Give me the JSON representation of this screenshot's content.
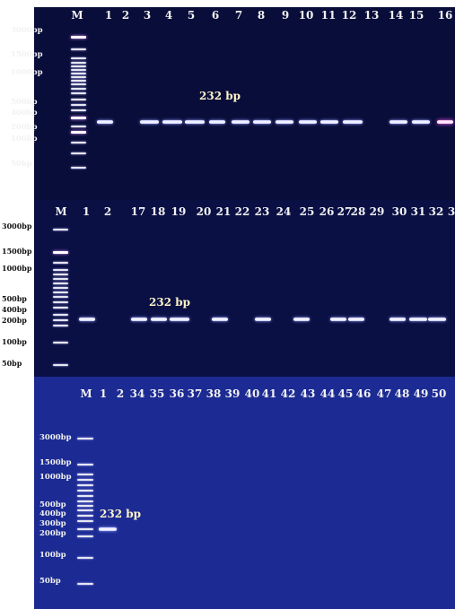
{
  "panels": [
    {
      "lanes": [
        "M",
        "1",
        "2",
        "3",
        "4",
        "5",
        "6",
        "7",
        "8",
        "9",
        "10",
        "11",
        "12",
        "13",
        "14",
        "15",
        "16"
      ],
      "ladder_labels": [
        "3000bp",
        "1500bp",
        "1000bp",
        "500bp",
        "400bp",
        "200bp",
        "100bp",
        "50bp"
      ],
      "product_label": "232 bp"
    },
    {
      "lanes": [
        "M",
        "1",
        "2",
        "17",
        "18",
        "19",
        "20",
        "21",
        "22",
        "23",
        "24",
        "25",
        "26",
        "27",
        "28",
        "29",
        "30",
        "31",
        "32",
        "3"
      ],
      "ladder_labels": [
        "3000bp",
        "1500bp",
        "1000bp",
        "500bp",
        "400bp",
        "200bp",
        "100bp",
        "50bp"
      ],
      "product_label": "232 bp"
    },
    {
      "lanes": [
        "M",
        "1",
        "2",
        "34",
        "35",
        "36",
        "37",
        "38",
        "39",
        "40",
        "41",
        "42",
        "43",
        "44",
        "45",
        "46",
        "47",
        "48",
        "49",
        "50"
      ],
      "ladder_labels": [
        "3000bp",
        "1500bp",
        "1000bp",
        "500bp",
        "400bp",
        "300bp",
        "200bp",
        "100bp",
        "50bp"
      ],
      "product_label": "232 bp"
    }
  ]
}
